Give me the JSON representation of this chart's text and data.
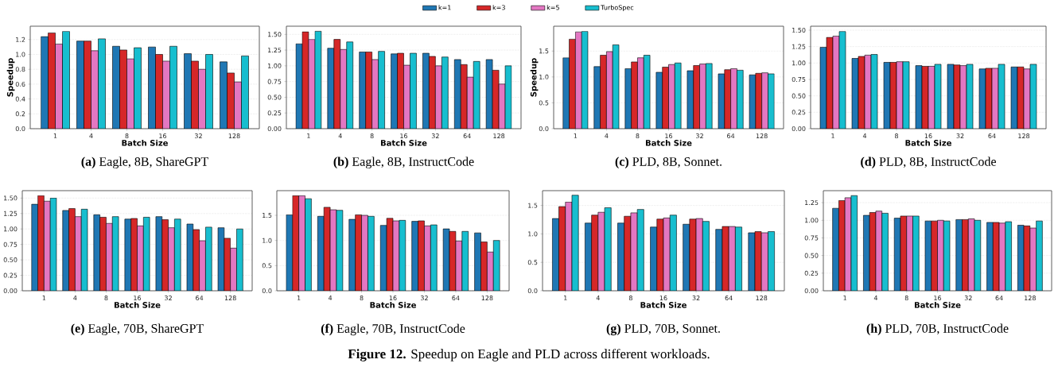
{
  "chart_data": [
    {
      "type": "bar",
      "title": "**(a)** Eagle, 8B, ShareGPT",
      "xlabel": "Batch Size",
      "ylabel": "Speedup",
      "categories": [
        "1",
        "4",
        "8",
        "16",
        "32",
        "128"
      ],
      "ylim": [
        0,
        1.38
      ],
      "yticks": [
        {
          "value": 0,
          "label": "0.0"
        },
        0.2,
        0.4,
        0.6,
        0.8,
        {
          "value": 1,
          "label": "1.0"
        },
        1.2
      ],
      "grid": "y",
      "legend": "top",
      "series": [
        {
          "name": "k=1",
          "color": "#1f77b4",
          "values": [
            1.24,
            1.18,
            1.11,
            1.1,
            1.01,
            0.9
          ]
        },
        {
          "name": "k=3",
          "color": "#d62728",
          "values": [
            1.29,
            1.18,
            1.06,
            1.0,
            0.91,
            0.75
          ]
        },
        {
          "name": "k=5",
          "color": "#e377c2",
          "values": [
            1.14,
            1.05,
            0.94,
            0.91,
            0.8,
            0.63
          ]
        },
        {
          "name": "TurboSpec",
          "color": "#17becf",
          "values": [
            1.31,
            1.21,
            1.09,
            1.11,
            1.0,
            0.98
          ]
        }
      ],
      "annotations": [
        "**Figure 12.** Speedup on Eagle and PLD across different workloads."
      ]
    },
    {
      "type": "bar",
      "title": "**(b)** Eagle, 8B, InstructCode",
      "xlabel": "Batch Size",
      "categories": [
        "1",
        "4",
        "8",
        "16",
        "32",
        "64",
        "128"
      ],
      "ylim": [
        0,
        1.63
      ],
      "yticks": [
        {
          "value": 0,
          "label": "0.00"
        },
        0.25,
        {
          "value": 0.5,
          "label": "0.50"
        },
        0.75,
        {
          "value": 1,
          "label": "1.00"
        },
        1.25,
        {
          "value": 1.5,
          "label": "1.50"
        }
      ],
      "grid": "y",
      "series": [
        {
          "color": "#1f77b4",
          "values": [
            1.35,
            1.28,
            1.22,
            1.19,
            1.2,
            1.1,
            1.1
          ]
        },
        {
          "color": "#d62728",
          "values": [
            1.54,
            1.42,
            1.22,
            1.2,
            1.15,
            1.02,
            0.93
          ]
        },
        {
          "color": "#e377c2",
          "values": [
            1.42,
            1.26,
            1.1,
            1.01,
            1.0,
            0.82,
            0.71
          ]
        },
        {
          "color": "#17becf",
          "values": [
            1.55,
            1.38,
            1.23,
            1.2,
            1.14,
            1.07,
            1.0
          ]
        }
      ]
    },
    {
      "type": "bar",
      "title": "**(c)** PLD, 8B, Sonnet.",
      "xlabel": "Batch Size",
      "ylabel": "Speedup",
      "categories": [
        "1",
        "4",
        "8",
        "16",
        "32",
        "64",
        "128"
      ],
      "ylim": [
        0,
        1.98
      ],
      "yticks": [
        {
          "value": 0,
          "label": "0.0"
        },
        0.5,
        {
          "value": 1,
          "label": "1.0"
        },
        1.5
      ],
      "grid": "y",
      "series": [
        {
          "color": "#1f77b4",
          "values": [
            1.37,
            1.2,
            1.16,
            1.09,
            1.12,
            1.06,
            1.04
          ]
        },
        {
          "color": "#d62728",
          "values": [
            1.73,
            1.42,
            1.29,
            1.19,
            1.22,
            1.14,
            1.07
          ]
        },
        {
          "color": "#e377c2",
          "values": [
            1.87,
            1.49,
            1.37,
            1.24,
            1.25,
            1.16,
            1.08
          ]
        },
        {
          "color": "#17becf",
          "values": [
            1.88,
            1.62,
            1.42,
            1.27,
            1.26,
            1.13,
            1.06
          ]
        }
      ]
    },
    {
      "type": "bar",
      "title": "**(d)** PLD, 8B, InstructCode",
      "xlabel": "Batch Size",
      "categories": [
        "1",
        "4",
        "8",
        "16",
        "32",
        "64",
        "128"
      ],
      "ylim": [
        0,
        1.56
      ],
      "yticks": [
        {
          "value": 0,
          "label": "0.00"
        },
        0.25,
        {
          "value": 0.5,
          "label": "0.50"
        },
        0.75,
        {
          "value": 1,
          "label": "1.00"
        },
        1.25,
        {
          "value": 1.5,
          "label": "1.50"
        }
      ],
      "grid": "y",
      "series": [
        {
          "color": "#1f77b4",
          "values": [
            1.24,
            1.07,
            1.01,
            0.96,
            0.98,
            0.91,
            0.94
          ]
        },
        {
          "color": "#d62728",
          "values": [
            1.39,
            1.1,
            1.01,
            0.95,
            0.97,
            0.92,
            0.94
          ]
        },
        {
          "color": "#e377c2",
          "values": [
            1.41,
            1.12,
            1.02,
            0.95,
            0.96,
            0.92,
            0.91
          ]
        },
        {
          "color": "#17becf",
          "values": [
            1.48,
            1.13,
            1.02,
            0.98,
            0.98,
            0.98,
            0.98
          ]
        }
      ]
    },
    {
      "type": "bar",
      "title": "**(e)** Eagle, 70B, ShareGPT",
      "xlabel": "Batch Size",
      "categories": [
        "1",
        "4",
        "8",
        "16",
        "32",
        "64",
        "128"
      ],
      "ylim": [
        0,
        1.62
      ],
      "yticks": [
        {
          "value": 0,
          "label": "0.00"
        },
        0.25,
        {
          "value": 0.5,
          "label": "0.50"
        },
        0.75,
        {
          "value": 1,
          "label": "1.00"
        },
        1.25,
        {
          "value": 1.5,
          "label": "1.50"
        }
      ],
      "grid": "y",
      "series": [
        {
          "color": "#1f77b4",
          "values": [
            1.4,
            1.3,
            1.23,
            1.16,
            1.2,
            1.08,
            1.02
          ]
        },
        {
          "color": "#d62728",
          "values": [
            1.54,
            1.33,
            1.19,
            1.17,
            1.15,
            0.99,
            0.85
          ]
        },
        {
          "color": "#e377c2",
          "values": [
            1.45,
            1.2,
            1.09,
            1.05,
            1.02,
            0.81,
            0.69
          ]
        },
        {
          "color": "#17becf",
          "values": [
            1.5,
            1.32,
            1.2,
            1.19,
            1.16,
            1.03,
            1.0
          ]
        }
      ]
    },
    {
      "type": "bar",
      "title": "**(f)** Eagle, 70B, InstructCode",
      "xlabel": "Batch Size",
      "categories": [
        "1",
        "4",
        "8",
        "16",
        "32",
        "64",
        "128"
      ],
      "ylim": [
        0,
        1.99
      ],
      "yticks": [
        {
          "value": 0,
          "label": "0.0"
        },
        0.5,
        {
          "value": 1,
          "label": "1.0"
        },
        1.5
      ],
      "grid": "y",
      "series": [
        {
          "color": "#1f77b4",
          "values": [
            1.51,
            1.48,
            1.42,
            1.3,
            1.38,
            1.23,
            1.15
          ]
        },
        {
          "color": "#d62728",
          "values": [
            1.89,
            1.66,
            1.51,
            1.44,
            1.39,
            1.18,
            0.97
          ]
        },
        {
          "color": "#e377c2",
          "values": [
            1.89,
            1.61,
            1.5,
            1.39,
            1.29,
            0.99,
            0.77
          ]
        },
        {
          "color": "#17becf",
          "values": [
            1.83,
            1.6,
            1.48,
            1.4,
            1.31,
            1.18,
            1.0
          ]
        }
      ]
    },
    {
      "type": "bar",
      "title": "**(g)** PLD, 70B, Sonnet.",
      "xlabel": "Batch Size",
      "categories": [
        "1",
        "4",
        "8",
        "16",
        "32",
        "64",
        "128"
      ],
      "ylim": [
        0,
        1.76
      ],
      "yticks": [
        {
          "value": 0,
          "label": "0.0"
        },
        0.5,
        {
          "value": 1,
          "label": "1.0"
        },
        1.5
      ],
      "grid": "y",
      "series": [
        {
          "color": "#1f77b4",
          "values": [
            1.27,
            1.19,
            1.19,
            1.12,
            1.17,
            1.08,
            1.02
          ]
        },
        {
          "color": "#d62728",
          "values": [
            1.48,
            1.33,
            1.31,
            1.26,
            1.26,
            1.13,
            1.04
          ]
        },
        {
          "color": "#e377c2",
          "values": [
            1.56,
            1.38,
            1.37,
            1.28,
            1.27,
            1.13,
            1.02
          ]
        },
        {
          "color": "#17becf",
          "values": [
            1.68,
            1.46,
            1.43,
            1.33,
            1.22,
            1.12,
            1.04
          ]
        }
      ]
    },
    {
      "type": "bar",
      "title": "**(h)** PLD, 70B, InstructCode",
      "xlabel": "Batch Size",
      "categories": [
        "1",
        "4",
        "8",
        "16",
        "32",
        "64",
        "128"
      ],
      "ylim": [
        0,
        1.42
      ],
      "yticks": [
        {
          "value": 0,
          "label": "0.00"
        },
        0.25,
        {
          "value": 0.5,
          "label": "0.50"
        },
        0.75,
        {
          "value": 1,
          "label": "1.00"
        },
        1.25
      ],
      "grid": "y",
      "series": [
        {
          "color": "#1f77b4",
          "values": [
            1.17,
            1.07,
            1.03,
            0.99,
            1.01,
            0.97,
            0.93
          ]
        },
        {
          "color": "#d62728",
          "values": [
            1.28,
            1.11,
            1.06,
            0.99,
            1.01,
            0.97,
            0.92
          ]
        },
        {
          "color": "#e377c2",
          "values": [
            1.32,
            1.13,
            1.06,
            1.0,
            1.02,
            0.96,
            0.89
          ]
        },
        {
          "color": "#17becf",
          "values": [
            1.35,
            1.1,
            1.06,
            0.99,
            1.0,
            0.98,
            0.99
          ]
        }
      ]
    }
  ]
}
